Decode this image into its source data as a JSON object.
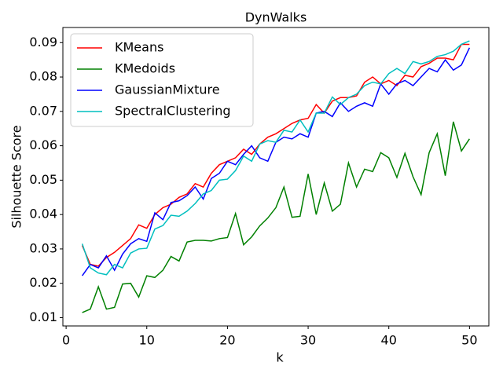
{
  "chart_data": {
    "type": "line",
    "title": "DynWalks",
    "x_label": "k",
    "y_label": "Silhouette Score",
    "x": [
      2,
      3,
      4,
      5,
      6,
      7,
      8,
      9,
      10,
      11,
      12,
      13,
      14,
      15,
      16,
      17,
      18,
      19,
      20,
      21,
      22,
      23,
      24,
      25,
      26,
      27,
      28,
      29,
      30,
      31,
      32,
      33,
      34,
      35,
      36,
      37,
      38,
      39,
      40,
      41,
      42,
      43,
      44,
      45,
      46,
      47,
      48,
      49,
      50
    ],
    "series": [
      {
        "name": "KMeans",
        "color": "#ff0000",
        "values": [
          0.031,
          0.0255,
          0.025,
          0.0275,
          0.029,
          0.031,
          0.033,
          0.037,
          0.036,
          0.04,
          0.042,
          0.043,
          0.045,
          0.046,
          0.049,
          0.048,
          0.052,
          0.0545,
          0.0555,
          0.0565,
          0.059,
          0.0575,
          0.0605,
          0.0625,
          0.0635,
          0.065,
          0.0665,
          0.0675,
          0.068,
          0.072,
          0.0695,
          0.073,
          0.074,
          0.074,
          0.0745,
          0.0785,
          0.08,
          0.078,
          0.079,
          0.0775,
          0.0805,
          0.08,
          0.083,
          0.084,
          0.0855,
          0.0855,
          0.085,
          0.0895,
          0.0895
        ]
      },
      {
        "name": "KMedoids",
        "color": "#008000",
        "values": [
          0.0115,
          0.0125,
          0.019,
          0.0125,
          0.013,
          0.0198,
          0.02,
          0.016,
          0.0222,
          0.0217,
          0.0238,
          0.0278,
          0.0265,
          0.032,
          0.0325,
          0.0325,
          0.0323,
          0.033,
          0.0333,
          0.0403,
          0.0312,
          0.0335,
          0.0367,
          0.039,
          0.042,
          0.048,
          0.0392,
          0.0395,
          0.0518,
          0.04,
          0.0492,
          0.041,
          0.043,
          0.055,
          0.048,
          0.0532,
          0.0525,
          0.058,
          0.0565,
          0.0508,
          0.0578,
          0.051,
          0.0458,
          0.058,
          0.0635,
          0.0513,
          0.067,
          0.0585,
          0.062
        ]
      },
      {
        "name": "GaussianMixture",
        "color": "#0000ff",
        "values": [
          0.0222,
          0.0255,
          0.0245,
          0.028,
          0.0238,
          0.0285,
          0.0315,
          0.033,
          0.0322,
          0.0405,
          0.0385,
          0.0435,
          0.044,
          0.0455,
          0.048,
          0.0445,
          0.0505,
          0.052,
          0.0555,
          0.0545,
          0.0575,
          0.06,
          0.0565,
          0.0555,
          0.061,
          0.0625,
          0.062,
          0.0635,
          0.0625,
          0.0695,
          0.07,
          0.0685,
          0.0725,
          0.07,
          0.0715,
          0.0725,
          0.0715,
          0.078,
          0.075,
          0.078,
          0.079,
          0.0775,
          0.08,
          0.0825,
          0.0815,
          0.085,
          0.082,
          0.0835,
          0.0885
        ]
      },
      {
        "name": "SpectralClustering",
        "color": "#00bfbf",
        "values": [
          0.0315,
          0.0245,
          0.023,
          0.0225,
          0.0255,
          0.0245,
          0.0288,
          0.03,
          0.0302,
          0.0358,
          0.0368,
          0.0398,
          0.0395,
          0.041,
          0.0432,
          0.046,
          0.047,
          0.05,
          0.0503,
          0.0528,
          0.057,
          0.0555,
          0.0605,
          0.0615,
          0.061,
          0.0645,
          0.064,
          0.0675,
          0.064,
          0.0695,
          0.0695,
          0.0742,
          0.072,
          0.074,
          0.075,
          0.0775,
          0.0785,
          0.078,
          0.081,
          0.0825,
          0.081,
          0.0845,
          0.0838,
          0.0845,
          0.086,
          0.0865,
          0.0875,
          0.0895,
          0.0905
        ]
      }
    ],
    "xlim": [
      -0.4,
      52.4
    ],
    "xticks": [
      0,
      10,
      20,
      30,
      40,
      50
    ],
    "ylim": [
      0.0076,
      0.0944
    ],
    "yticks": [
      0.01,
      0.02,
      0.03,
      0.04,
      0.05,
      0.06,
      0.07,
      0.08,
      0.09
    ],
    "legend": "upper left",
    "grid": false
  }
}
